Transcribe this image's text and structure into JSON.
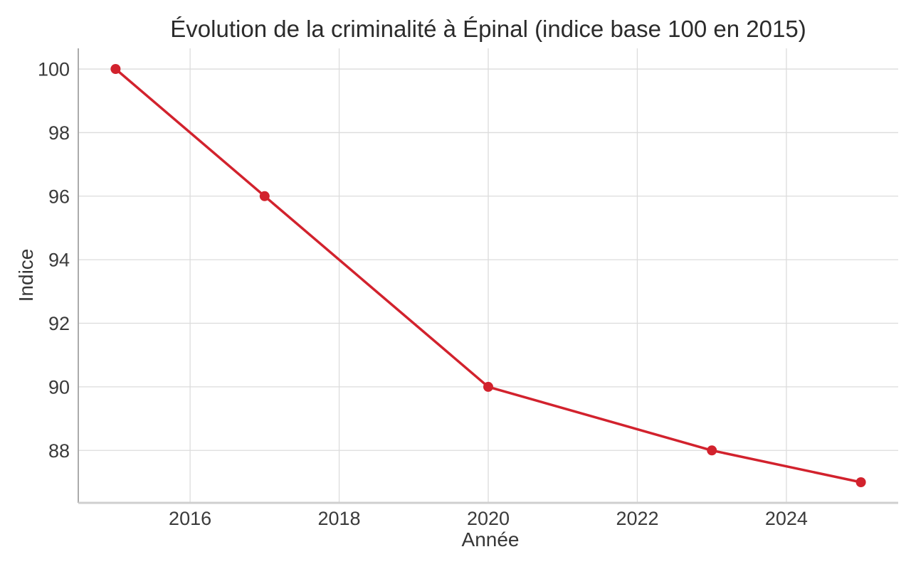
{
  "chart_data": {
    "type": "line",
    "title": "Évolution de la criminalité à Épinal (indice base 100 en 2015)",
    "xlabel": "Année",
    "ylabel": "Indice",
    "x": [
      2015,
      2017,
      2020,
      2023,
      2025
    ],
    "values": [
      100,
      96,
      90,
      88,
      87
    ],
    "xticks": [
      2016,
      2018,
      2020,
      2022,
      2024
    ],
    "yticks": [
      88,
      90,
      92,
      94,
      96,
      98,
      100
    ],
    "xlim": [
      2014.5,
      2025.5
    ],
    "ylim": [
      86.35,
      100.65
    ],
    "grid": true,
    "legend": "none",
    "line_color": "#d2222d",
    "marker": "circle",
    "grid_color": "#dcdcdc",
    "left_spine_color": "#ababab",
    "bottom_spine_color": "#cfcfcf",
    "background_color": "#ffffff"
  }
}
